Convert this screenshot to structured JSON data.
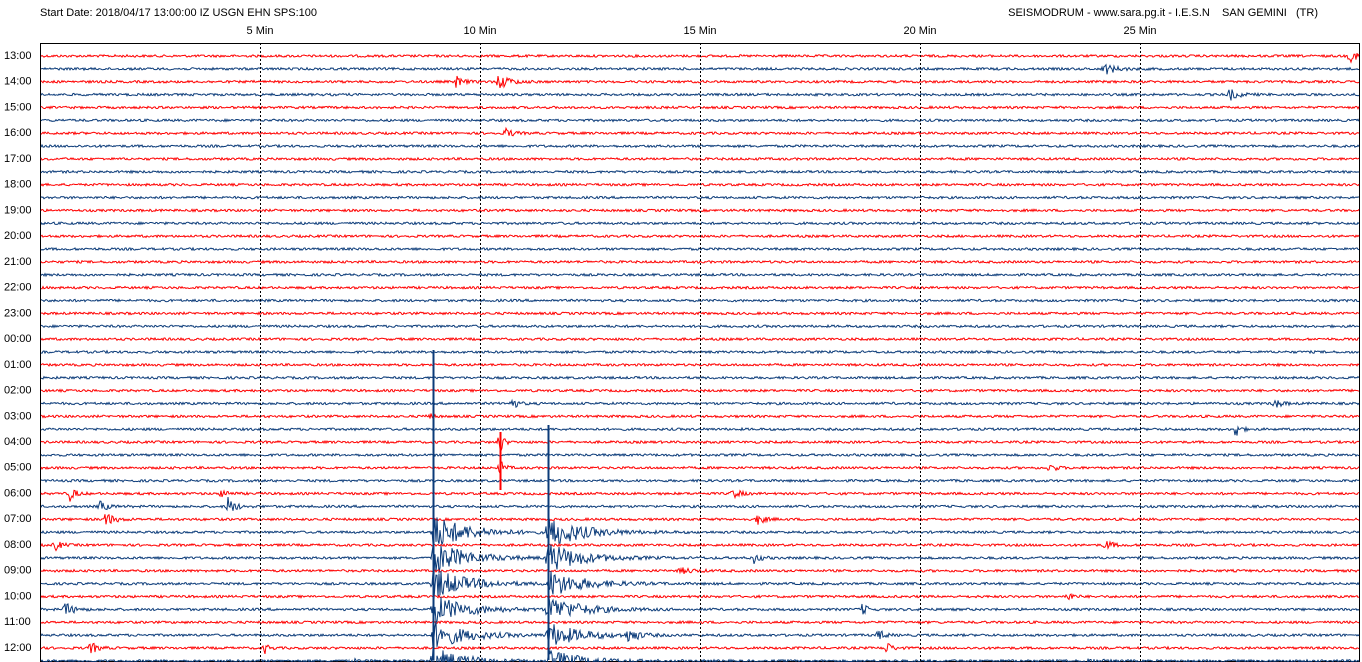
{
  "header": {
    "left": "Start Date: 2018/04/17 13:00:00 IZ USGN EHN SPS:100",
    "right": "SEISMODRUM - www.sara.pg.it - I.E.S.N    SAN GEMINI   (TR)"
  },
  "minute_labels": [
    "5 Min",
    "10 Min",
    "15 Min",
    "20 Min",
    "25 Min"
  ],
  "hour_labels": [
    "13:00",
    "14:00",
    "15:00",
    "16:00",
    "17:00",
    "18:00",
    "19:00",
    "20:00",
    "21:00",
    "22:00",
    "23:00",
    "00:00",
    "01:00",
    "02:00",
    "03:00",
    "04:00",
    "05:00",
    "06:00",
    "07:00",
    "08:00",
    "09:00",
    "10:00",
    "11:00",
    "12:00"
  ]
}
